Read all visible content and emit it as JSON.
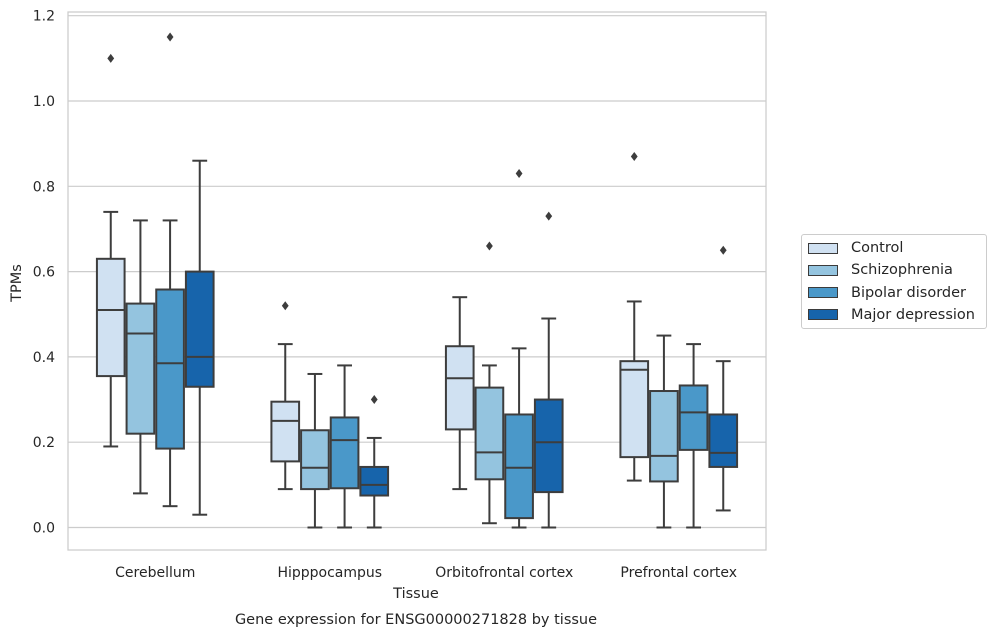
{
  "chart_data": {
    "type": "box",
    "title": "Gene expression for ENSG00000271828 by tissue",
    "xlabel": "Tissue",
    "ylabel": "TPMs",
    "ylim": [
      -0.055,
      1.21
    ],
    "yticks": [
      "0.0",
      "0.2",
      "0.4",
      "0.6",
      "0.8",
      "1.0",
      "1.2"
    ],
    "grid": "horizontal",
    "legend_position": "right",
    "categories": [
      "Cerebellum",
      "Hipppocampus",
      "Orbitofrontal cortex",
      "Prefrontal cortex"
    ],
    "series": [
      {
        "name": "Control",
        "color": "#d0e1f2",
        "boxes": [
          {
            "whisker_low": 0.19,
            "q1": 0.355,
            "median": 0.51,
            "q3": 0.63,
            "whisker_high": 0.74,
            "outliers": [
              1.1
            ]
          },
          {
            "whisker_low": 0.09,
            "q1": 0.155,
            "median": 0.25,
            "q3": 0.295,
            "whisker_high": 0.43,
            "outliers": [
              0.52
            ]
          },
          {
            "whisker_low": 0.09,
            "q1": 0.23,
            "median": 0.35,
            "q3": 0.425,
            "whisker_high": 0.54,
            "outliers": []
          },
          {
            "whisker_low": 0.11,
            "q1": 0.165,
            "median": 0.37,
            "q3": 0.39,
            "whisker_high": 0.53,
            "outliers": [
              0.87
            ]
          }
        ]
      },
      {
        "name": "Schizophrenia",
        "color": "#94c4df",
        "boxes": [
          {
            "whisker_low": 0.08,
            "q1": 0.22,
            "median": 0.455,
            "q3": 0.525,
            "whisker_high": 0.72,
            "outliers": []
          },
          {
            "whisker_low": 0.0,
            "q1": 0.09,
            "median": 0.14,
            "q3": 0.228,
            "whisker_high": 0.36,
            "outliers": []
          },
          {
            "whisker_low": 0.01,
            "q1": 0.113,
            "median": 0.176,
            "q3": 0.328,
            "whisker_high": 0.38,
            "outliers": [
              0.66
            ]
          },
          {
            "whisker_low": 0.0,
            "q1": 0.108,
            "median": 0.168,
            "q3": 0.32,
            "whisker_high": 0.45,
            "outliers": []
          }
        ]
      },
      {
        "name": "Bipolar disorder",
        "color": "#4a98c9",
        "boxes": [
          {
            "whisker_low": 0.05,
            "q1": 0.185,
            "median": 0.385,
            "q3": 0.558,
            "whisker_high": 0.72,
            "outliers": [
              1.15
            ]
          },
          {
            "whisker_low": 0.0,
            "q1": 0.092,
            "median": 0.205,
            "q3": 0.258,
            "whisker_high": 0.38,
            "outliers": []
          },
          {
            "whisker_low": 0.0,
            "q1": 0.022,
            "median": 0.14,
            "q3": 0.265,
            "whisker_high": 0.42,
            "outliers": [
              0.83
            ]
          },
          {
            "whisker_low": 0.0,
            "q1": 0.182,
            "median": 0.27,
            "q3": 0.333,
            "whisker_high": 0.43,
            "outliers": []
          }
        ]
      },
      {
        "name": "Major depression",
        "color": "#1764ab",
        "boxes": [
          {
            "whisker_low": 0.03,
            "q1": 0.33,
            "median": 0.4,
            "q3": 0.6,
            "whisker_high": 0.86,
            "outliers": []
          },
          {
            "whisker_low": 0.0,
            "q1": 0.075,
            "median": 0.1,
            "q3": 0.142,
            "whisker_high": 0.21,
            "outliers": [
              0.3
            ]
          },
          {
            "whisker_low": 0.0,
            "q1": 0.083,
            "median": 0.2,
            "q3": 0.3,
            "whisker_high": 0.49,
            "outliers": [
              0.73
            ]
          },
          {
            "whisker_low": 0.04,
            "q1": 0.142,
            "median": 0.175,
            "q3": 0.265,
            "whisker_high": 0.39,
            "outliers": [
              0.65
            ]
          }
        ]
      }
    ]
  }
}
